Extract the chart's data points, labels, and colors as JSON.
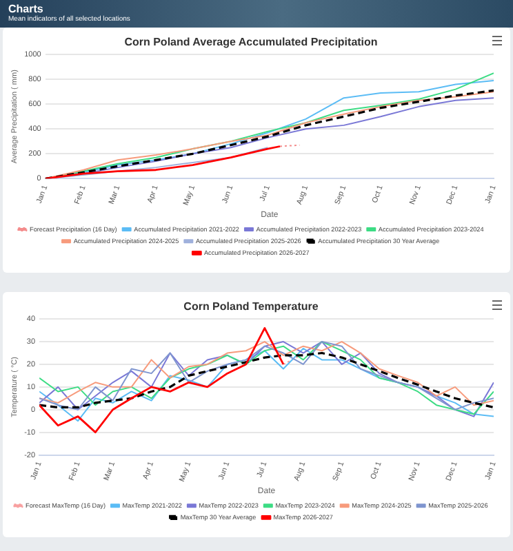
{
  "chart_data": [
    {
      "type": "other",
      "title": "Charts",
      "subtitle": "Mean indicators of all selected locations"
    },
    {
      "type": "line",
      "title": "Corn Poland Average Accumulated Precipitation",
      "xlabel": "Date",
      "ylabel": "Average Precipitation ( mm)",
      "grid": "y",
      "legend": "bottom",
      "marker": "none",
      "x": [
        "2026-01-01",
        "2026-02-01",
        "2026-03-01",
        "2026-04-01",
        "2026-05-01",
        "2026-06-01",
        "2026-07-01",
        "2026-08-01",
        "2026-09-01",
        "2026-10-01",
        "2026-11-01",
        "2026-12-01",
        "2027-01-01"
      ],
      "xlim": [
        "2026-01-01",
        "2027-01-01"
      ],
      "xticks": [
        {
          "value": "2026-01-01",
          "label": "Jan 1"
        },
        {
          "value": "2026-02-01",
          "label": "Feb 1"
        },
        {
          "value": "2026-03-01",
          "label": "Mar 1"
        },
        {
          "value": "2026-04-01",
          "label": "Apr 1"
        },
        {
          "value": "2026-05-01",
          "label": "May 1"
        },
        {
          "value": "2026-06-01",
          "label": "Jun 1"
        },
        {
          "value": "2026-07-01",
          "label": "Jul 1"
        },
        {
          "value": "2026-08-01",
          "label": "Aug 1"
        },
        {
          "value": "2026-09-01",
          "label": "Sep 1"
        },
        {
          "value": "2026-10-01",
          "label": "Oct 1"
        },
        {
          "value": "2026-11-01",
          "label": "Nov 1"
        },
        {
          "value": "2026-12-01",
          "label": "Dec 1"
        },
        {
          "value": "2027-01-01",
          "label": "Jan 1"
        }
      ],
      "ylim": [
        0,
        1000
      ],
      "yticks": [
        0,
        200,
        400,
        600,
        800,
        1000
      ],
      "series": [
        {
          "name": "Forecast Precipitation (16 Day)",
          "color": "#f48c8c",
          "line_style": "dotted",
          "x": [
            "2026-07-11",
            "2026-07-27"
          ],
          "values": [
            260,
            270
          ]
        },
        {
          "name": "Accumulated Precipitation 2021-2022",
          "color": "#5bbcf5",
          "values": [
            0,
            50,
            110,
            150,
            200,
            280,
            370,
            480,
            650,
            690,
            700,
            760,
            790
          ]
        },
        {
          "name": "Accumulated Precipitation 2022-2023",
          "color": "#7a78d6",
          "values": [
            0,
            40,
            90,
            140,
            200,
            250,
            330,
            400,
            430,
            500,
            580,
            630,
            650
          ]
        },
        {
          "name": "Accumulated Precipitation 2023-2024",
          "color": "#3ddc84",
          "values": [
            0,
            60,
            120,
            170,
            240,
            300,
            380,
            450,
            550,
            590,
            640,
            720,
            850
          ]
        },
        {
          "name": "Accumulated Precipitation 2024-2025",
          "color": "#f79b7c",
          "values": [
            0,
            70,
            150,
            190,
            240,
            300,
            350,
            450,
            520,
            580,
            630,
            660,
            700
          ]
        },
        {
          "name": "Accumulated Precipitation 2025-2026",
          "color": "#9fb0dc",
          "x": [
            "2026-01-01",
            "2026-02-01",
            "2026-03-01",
            "2026-04-01",
            "2026-05-01",
            "2026-06-01",
            "2026-07-01"
          ],
          "values": [
            0,
            30,
            60,
            90,
            130,
            170,
            250
          ]
        },
        {
          "name": "Accumulated Precipitation 30 Year Average",
          "color": "#000000",
          "line_style": "dashed",
          "values": [
            0,
            50,
            100,
            150,
            200,
            270,
            340,
            430,
            500,
            570,
            620,
            670,
            710
          ]
        },
        {
          "name": "Accumulated Precipitation 2026-2027",
          "color": "#ff0000",
          "x": [
            "2026-01-01",
            "2026-02-01",
            "2026-03-01",
            "2026-04-01",
            "2026-05-01",
            "2026-06-01",
            "2026-07-01",
            "2026-07-11"
          ],
          "values": [
            0,
            40,
            60,
            70,
            110,
            170,
            240,
            260
          ]
        }
      ]
    },
    {
      "type": "line",
      "title": "Corn Poland Temperature",
      "xlabel": "Date",
      "ylabel": "Temperature ( °C)",
      "grid": "y",
      "legend": "bottom",
      "marker": "none",
      "x": [
        "2026-01-01",
        "2026-01-16",
        "2026-02-01",
        "2026-02-15",
        "2026-03-01",
        "2026-03-16",
        "2026-04-01",
        "2026-04-16",
        "2026-05-01",
        "2026-05-16",
        "2026-06-01",
        "2026-06-16",
        "2026-07-01",
        "2026-07-16",
        "2026-08-01",
        "2026-08-16",
        "2026-09-01",
        "2026-09-16",
        "2026-10-01",
        "2026-10-16",
        "2026-11-01",
        "2026-11-16",
        "2026-12-01",
        "2026-12-16",
        "2027-01-01"
      ],
      "xlim": [
        "2026-01-01",
        "2027-01-01"
      ],
      "xticks": [
        {
          "value": "2026-01-01",
          "label": "Jan 1"
        },
        {
          "value": "2026-02-01",
          "label": "Feb 1"
        },
        {
          "value": "2026-03-01",
          "label": "Mar 1"
        },
        {
          "value": "2026-04-01",
          "label": "Apr 1"
        },
        {
          "value": "2026-05-01",
          "label": "May 1"
        },
        {
          "value": "2026-06-01",
          "label": "Jun 1"
        },
        {
          "value": "2026-07-01",
          "label": "Jul 1"
        },
        {
          "value": "2026-08-01",
          "label": "Aug 1"
        },
        {
          "value": "2026-09-01",
          "label": "Sep 1"
        },
        {
          "value": "2026-10-01",
          "label": "Oct 1"
        },
        {
          "value": "2026-11-01",
          "label": "Nov 1"
        },
        {
          "value": "2026-12-01",
          "label": "Dec 1"
        },
        {
          "value": "2027-01-01",
          "label": "Jan 1"
        }
      ],
      "ylim": [
        -20,
        40
      ],
      "yticks": [
        -20,
        -10,
        0,
        10,
        20,
        30,
        40
      ],
      "series": [
        {
          "name": "Forecast MaxTemp (16 Day)",
          "color": "#f8a0a0",
          "line_style": "dotted",
          "x": [
            "2026-07-16",
            "2026-07-23",
            "2026-07-30"
          ],
          "values": [
            20,
            22,
            24
          ]
        },
        {
          "name": "MaxTemp 2021-2022",
          "color": "#5bbcf5",
          "values": [
            8,
            2,
            -5,
            5,
            3,
            8,
            4,
            15,
            13,
            10,
            20,
            22,
            26,
            18,
            27,
            22,
            22,
            18,
            14,
            12,
            10,
            6,
            3,
            -2,
            -3
          ]
        },
        {
          "name": "MaxTemp 2022-2023",
          "color": "#7a78d6",
          "values": [
            3,
            10,
            0,
            6,
            12,
            17,
            10,
            25,
            15,
            22,
            24,
            20,
            28,
            30,
            25,
            30,
            20,
            25,
            16,
            12,
            10,
            6,
            0,
            -3,
            12
          ]
        },
        {
          "name": "MaxTemp 2023-2024",
          "color": "#3ddc84",
          "values": [
            14,
            8,
            10,
            2,
            8,
            10,
            5,
            14,
            18,
            20,
            24,
            20,
            26,
            28,
            22,
            30,
            26,
            22,
            14,
            12,
            8,
            2,
            0,
            -2,
            8
          ]
        },
        {
          "name": "MaxTemp 2024-2025",
          "color": "#f79b7c",
          "values": [
            5,
            3,
            8,
            12,
            10,
            10,
            22,
            14,
            19,
            20,
            25,
            26,
            30,
            24,
            28,
            26,
            30,
            25,
            18,
            15,
            12,
            6,
            10,
            2,
            4
          ]
        },
        {
          "name": "MaxTemp 2025-2026",
          "color": "#7f95cf",
          "values": [
            5,
            2,
            0,
            10,
            4,
            18,
            16,
            25,
            12,
            17,
            20,
            22,
            28,
            25,
            20,
            30,
            28,
            18,
            15,
            12,
            10,
            5,
            0,
            3,
            5
          ]
        },
        {
          "name": "MaxTemp 30 Year Average",
          "color": "#000000",
          "line_style": "dashed",
          "values": [
            2,
            1,
            1,
            3,
            4,
            5,
            8,
            10,
            15,
            17,
            19,
            21,
            23,
            24,
            24,
            25,
            23,
            20,
            17,
            14,
            11,
            8,
            5,
            3,
            1
          ]
        },
        {
          "name": "MaxTemp 2026-2027",
          "color": "#ff0000",
          "values": [
            2,
            -7,
            -3,
            -10,
            0,
            5,
            10,
            8,
            12,
            10,
            16,
            20,
            36,
            20,
            null,
            null,
            null,
            null,
            null,
            null,
            null,
            null,
            null,
            null,
            null
          ]
        }
      ]
    }
  ]
}
